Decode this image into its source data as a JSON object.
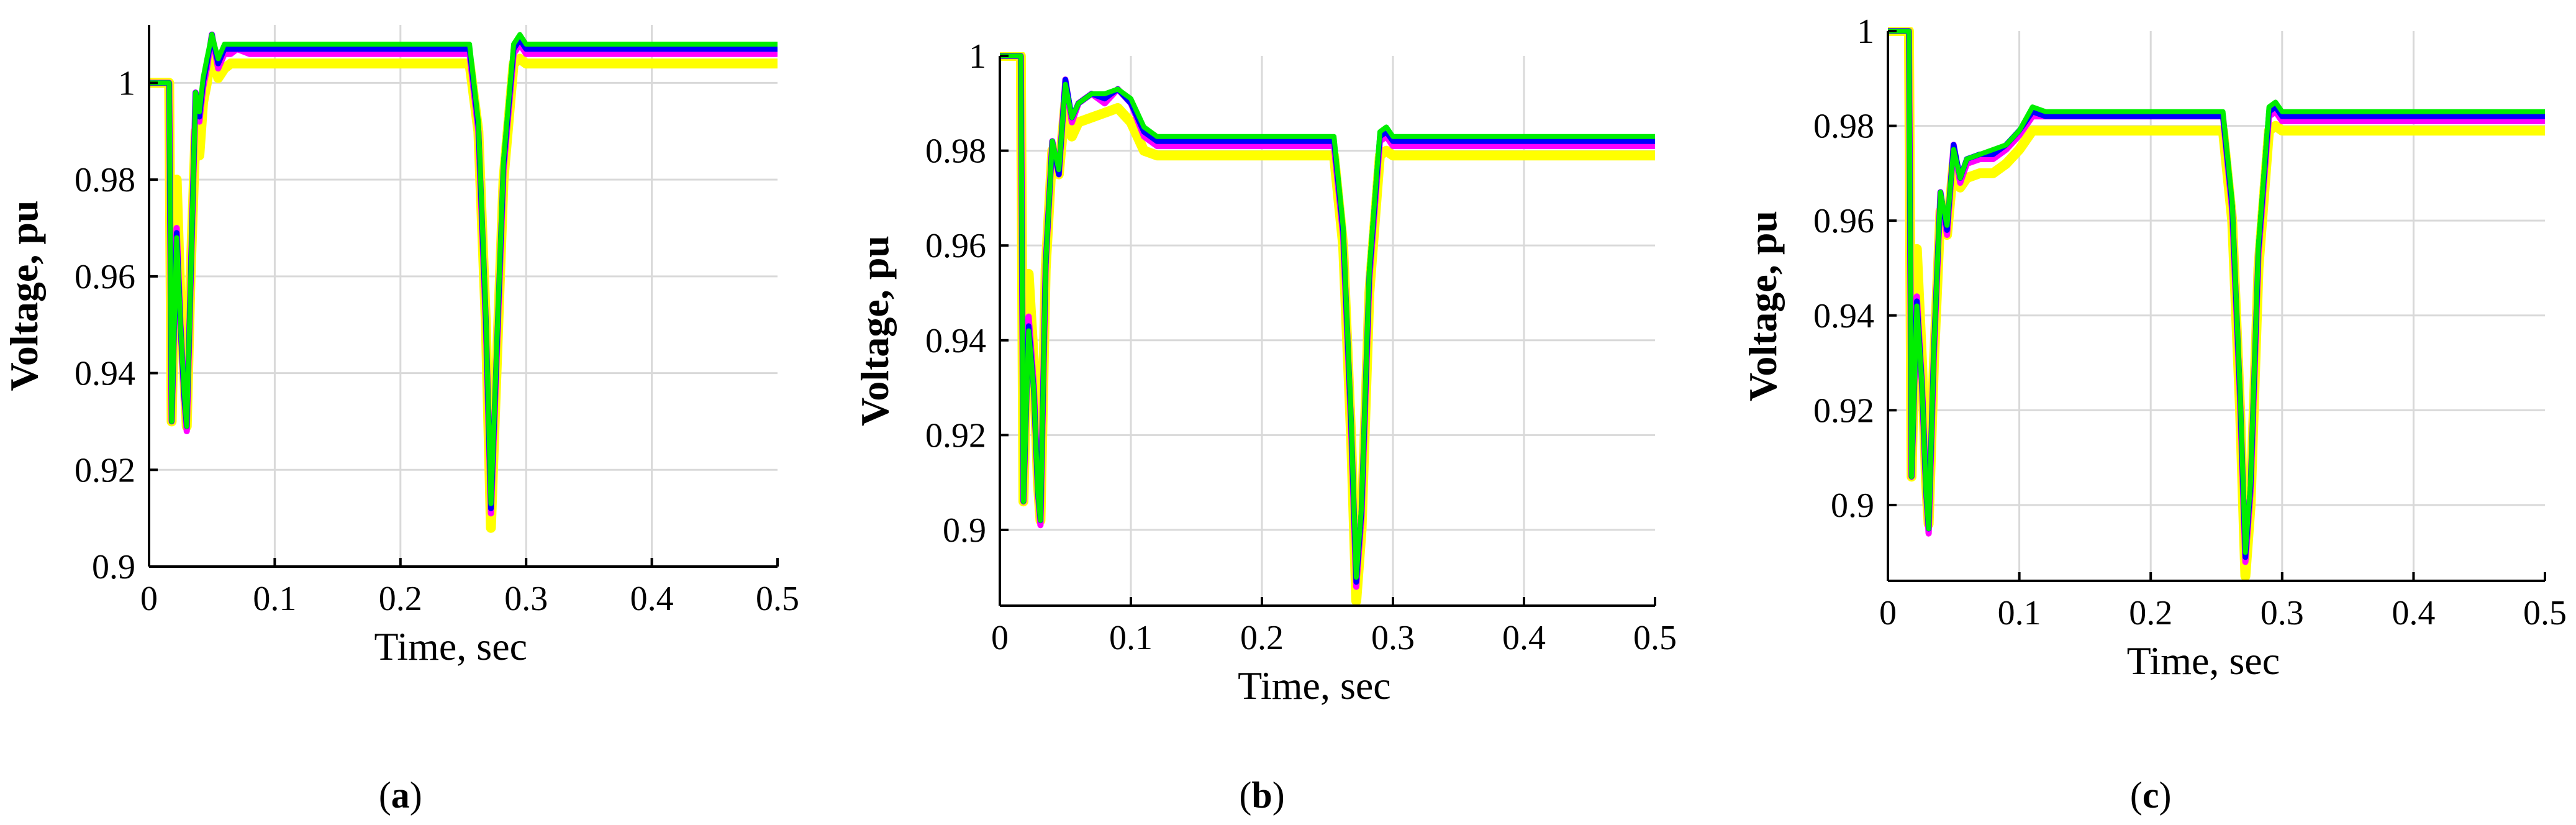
{
  "colors": {
    "yellow": "#ffff00",
    "magenta": "#ff00ff",
    "blue": "#0000ff",
    "green": "#00ee00"
  },
  "chart_data": [
    {
      "type": "line",
      "panel_label": "a",
      "xlabel": "Time, sec",
      "ylabel": "Voltage, pu",
      "xlim": [
        0,
        0.5
      ],
      "ylim": [
        0.9,
        1.012
      ],
      "xticks": [
        "0",
        "0.1",
        "0.2",
        "0.3",
        "0.4",
        "0.5"
      ],
      "yticks": [
        "0.9",
        "0.92",
        "0.94",
        "0.96",
        "0.98",
        "1"
      ],
      "grid": true,
      "series": [
        {
          "color": "yellow",
          "x": [
            0,
            0.016,
            0.018,
            0.022,
            0.025,
            0.028,
            0.03,
            0.033,
            0.037,
            0.04,
            0.043,
            0.046,
            0.05,
            0.055,
            0.06,
            0.065,
            0.07,
            0.08,
            0.255,
            0.262,
            0.268,
            0.272,
            0.275,
            0.282,
            0.29,
            0.295,
            0.3,
            0.5
          ],
          "y": [
            1.0,
            1.0,
            0.93,
            0.98,
            0.955,
            0.94,
            0.929,
            0.96,
            0.99,
            0.985,
            0.996,
            1.0,
            1.007,
            1.001,
            1.003,
            1.004,
            1.004,
            1.004,
            1.004,
            0.99,
            0.95,
            0.908,
            0.93,
            0.98,
            1.004,
            1.005,
            1.004,
            1.004
          ]
        },
        {
          "color": "magenta",
          "x": [
            0,
            0.016,
            0.018,
            0.022,
            0.025,
            0.028,
            0.03,
            0.033,
            0.037,
            0.04,
            0.043,
            0.046,
            0.05,
            0.055,
            0.06,
            0.065,
            0.07,
            0.08,
            0.255,
            0.262,
            0.268,
            0.272,
            0.275,
            0.282,
            0.29,
            0.295,
            0.3,
            0.5
          ],
          "y": [
            1.0,
            1.0,
            0.93,
            0.97,
            0.95,
            0.935,
            0.928,
            0.958,
            0.998,
            0.992,
            0.999,
            1.003,
            1.01,
            1.003,
            1.006,
            1.006,
            1.007,
            1.006,
            1.006,
            0.99,
            0.95,
            0.911,
            0.932,
            0.982,
            1.006,
            1.008,
            1.006,
            1.006
          ]
        },
        {
          "color": "blue",
          "x": [
            0,
            0.016,
            0.018,
            0.022,
            0.025,
            0.028,
            0.03,
            0.033,
            0.037,
            0.04,
            0.043,
            0.046,
            0.05,
            0.055,
            0.06,
            0.065,
            0.07,
            0.08,
            0.255,
            0.262,
            0.268,
            0.272,
            0.275,
            0.282,
            0.29,
            0.295,
            0.3,
            0.5
          ],
          "y": [
            1.0,
            1.0,
            0.93,
            0.969,
            0.95,
            0.935,
            0.929,
            0.958,
            0.998,
            0.993,
            1.0,
            1.004,
            1.01,
            1.004,
            1.007,
            1.007,
            1.007,
            1.007,
            1.007,
            0.991,
            0.951,
            0.912,
            0.933,
            0.983,
            1.007,
            1.009,
            1.007,
            1.007
          ]
        },
        {
          "color": "green",
          "x": [
            0,
            0.016,
            0.018,
            0.022,
            0.025,
            0.028,
            0.03,
            0.033,
            0.037,
            0.04,
            0.043,
            0.046,
            0.05,
            0.055,
            0.06,
            0.065,
            0.07,
            0.08,
            0.255,
            0.262,
            0.268,
            0.272,
            0.275,
            0.282,
            0.29,
            0.295,
            0.3,
            0.5
          ],
          "y": [
            1.0,
            1.0,
            0.93,
            0.968,
            0.95,
            0.936,
            0.929,
            0.958,
            0.998,
            0.994,
            1.001,
            1.005,
            1.01,
            1.005,
            1.008,
            1.008,
            1.008,
            1.008,
            1.008,
            0.992,
            0.952,
            0.913,
            0.934,
            0.984,
            1.008,
            1.01,
            1.008,
            1.008
          ]
        }
      ]
    },
    {
      "type": "line",
      "panel_label": "b",
      "xlabel": "Time, sec",
      "ylabel": "Voltage, pu",
      "xlim": [
        0,
        0.5
      ],
      "ylim": [
        0.884,
        1.0
      ],
      "xticks": [
        "0",
        "0.1",
        "0.2",
        "0.3",
        "0.4",
        "0.5"
      ],
      "yticks": [
        "0.9",
        "0.92",
        "0.94",
        "0.96",
        "0.98",
        "1"
      ],
      "grid": true,
      "series": [
        {
          "color": "yellow",
          "x": [
            0,
            0.016,
            0.018,
            0.022,
            0.026,
            0.029,
            0.031,
            0.035,
            0.04,
            0.045,
            0.05,
            0.055,
            0.06,
            0.07,
            0.08,
            0.09,
            0.1,
            0.11,
            0.12,
            0.255,
            0.262,
            0.268,
            0.272,
            0.276,
            0.282,
            0.29,
            0.295,
            0.3,
            0.5
          ],
          "y": [
            1.0,
            1.0,
            0.906,
            0.954,
            0.935,
            0.91,
            0.902,
            0.955,
            0.98,
            0.975,
            0.99,
            0.983,
            0.986,
            0.987,
            0.988,
            0.989,
            0.986,
            0.98,
            0.979,
            0.979,
            0.96,
            0.92,
            0.885,
            0.9,
            0.95,
            0.979,
            0.98,
            0.979,
            0.979
          ]
        },
        {
          "color": "magenta",
          "x": [
            0,
            0.016,
            0.018,
            0.022,
            0.026,
            0.029,
            0.031,
            0.035,
            0.04,
            0.045,
            0.05,
            0.055,
            0.06,
            0.07,
            0.08,
            0.09,
            0.1,
            0.11,
            0.12,
            0.255,
            0.262,
            0.268,
            0.272,
            0.276,
            0.282,
            0.29,
            0.295,
            0.3,
            0.5
          ],
          "y": [
            1.0,
            1.0,
            0.906,
            0.945,
            0.93,
            0.908,
            0.901,
            0.956,
            0.982,
            0.975,
            0.995,
            0.986,
            0.99,
            0.992,
            0.99,
            0.993,
            0.99,
            0.983,
            0.981,
            0.981,
            0.962,
            0.922,
            0.888,
            0.903,
            0.953,
            0.982,
            0.983,
            0.981,
            0.981
          ]
        },
        {
          "color": "blue",
          "x": [
            0,
            0.016,
            0.018,
            0.022,
            0.026,
            0.029,
            0.031,
            0.035,
            0.04,
            0.045,
            0.05,
            0.055,
            0.06,
            0.07,
            0.08,
            0.09,
            0.1,
            0.11,
            0.12,
            0.255,
            0.262,
            0.268,
            0.272,
            0.276,
            0.282,
            0.29,
            0.295,
            0.3,
            0.5
          ],
          "y": [
            1.0,
            1.0,
            0.906,
            0.943,
            0.929,
            0.908,
            0.902,
            0.956,
            0.982,
            0.975,
            0.995,
            0.987,
            0.99,
            0.992,
            0.991,
            0.993,
            0.99,
            0.984,
            0.982,
            0.982,
            0.963,
            0.923,
            0.889,
            0.904,
            0.954,
            0.983,
            0.984,
            0.982,
            0.982
          ]
        },
        {
          "color": "green",
          "x": [
            0,
            0.016,
            0.018,
            0.022,
            0.026,
            0.029,
            0.031,
            0.035,
            0.04,
            0.045,
            0.05,
            0.055,
            0.06,
            0.07,
            0.08,
            0.09,
            0.1,
            0.11,
            0.12,
            0.255,
            0.262,
            0.268,
            0.272,
            0.276,
            0.282,
            0.29,
            0.295,
            0.3,
            0.5
          ],
          "y": [
            1.0,
            1.0,
            0.906,
            0.942,
            0.929,
            0.908,
            0.902,
            0.956,
            0.982,
            0.976,
            0.994,
            0.987,
            0.99,
            0.992,
            0.992,
            0.993,
            0.991,
            0.985,
            0.983,
            0.983,
            0.964,
            0.924,
            0.89,
            0.905,
            0.955,
            0.984,
            0.985,
            0.983,
            0.983
          ]
        }
      ]
    },
    {
      "type": "line",
      "panel_label": "c",
      "xlabel": "Time, sec",
      "ylabel": "Voltage, pu",
      "xlim": [
        0,
        0.5
      ],
      "ylim": [
        0.884,
        1.0
      ],
      "xticks": [
        "0",
        "0.1",
        "0.2",
        "0.3",
        "0.4",
        "0.5"
      ],
      "yticks": [
        "0.9",
        "0.92",
        "0.94",
        "0.96",
        "0.98",
        "1"
      ],
      "grid": true,
      "series": [
        {
          "color": "yellow",
          "x": [
            0,
            0.016,
            0.018,
            0.022,
            0.026,
            0.029,
            0.031,
            0.035,
            0.04,
            0.045,
            0.05,
            0.055,
            0.06,
            0.07,
            0.08,
            0.09,
            0.1,
            0.11,
            0.12,
            0.255,
            0.262,
            0.268,
            0.272,
            0.276,
            0.282,
            0.29,
            0.295,
            0.3,
            0.5
          ],
          "y": [
            1.0,
            1.0,
            0.906,
            0.954,
            0.93,
            0.905,
            0.896,
            0.93,
            0.962,
            0.957,
            0.972,
            0.967,
            0.969,
            0.97,
            0.97,
            0.972,
            0.975,
            0.979,
            0.979,
            0.979,
            0.96,
            0.92,
            0.885,
            0.9,
            0.95,
            0.979,
            0.98,
            0.979,
            0.979
          ]
        },
        {
          "color": "magenta",
          "x": [
            0,
            0.016,
            0.018,
            0.022,
            0.026,
            0.029,
            0.031,
            0.035,
            0.04,
            0.045,
            0.05,
            0.055,
            0.06,
            0.07,
            0.08,
            0.09,
            0.1,
            0.11,
            0.12,
            0.255,
            0.262,
            0.268,
            0.272,
            0.276,
            0.282,
            0.29,
            0.295,
            0.3,
            0.5
          ],
          "y": [
            1.0,
            1.0,
            0.906,
            0.944,
            0.925,
            0.903,
            0.894,
            0.932,
            0.966,
            0.957,
            0.976,
            0.968,
            0.972,
            0.973,
            0.973,
            0.975,
            0.978,
            0.982,
            0.982,
            0.982,
            0.962,
            0.922,
            0.888,
            0.903,
            0.953,
            0.982,
            0.983,
            0.981,
            0.981
          ]
        },
        {
          "color": "blue",
          "x": [
            0,
            0.016,
            0.018,
            0.022,
            0.026,
            0.029,
            0.031,
            0.035,
            0.04,
            0.045,
            0.05,
            0.055,
            0.06,
            0.07,
            0.08,
            0.09,
            0.1,
            0.11,
            0.12,
            0.255,
            0.262,
            0.268,
            0.272,
            0.276,
            0.282,
            0.29,
            0.295,
            0.3,
            0.5
          ],
          "y": [
            1.0,
            1.0,
            0.906,
            0.943,
            0.925,
            0.903,
            0.895,
            0.933,
            0.966,
            0.958,
            0.976,
            0.969,
            0.973,
            0.974,
            0.974,
            0.976,
            0.979,
            0.983,
            0.982,
            0.982,
            0.963,
            0.923,
            0.889,
            0.904,
            0.954,
            0.983,
            0.984,
            0.982,
            0.982
          ]
        },
        {
          "color": "green",
          "x": [
            0,
            0.016,
            0.018,
            0.022,
            0.026,
            0.029,
            0.031,
            0.035,
            0.04,
            0.045,
            0.05,
            0.055,
            0.06,
            0.07,
            0.08,
            0.09,
            0.1,
            0.11,
            0.12,
            0.255,
            0.262,
            0.268,
            0.272,
            0.276,
            0.282,
            0.29,
            0.295,
            0.3,
            0.5
          ],
          "y": [
            1.0,
            1.0,
            0.906,
            0.942,
            0.925,
            0.903,
            0.895,
            0.933,
            0.966,
            0.959,
            0.975,
            0.969,
            0.973,
            0.974,
            0.975,
            0.976,
            0.979,
            0.984,
            0.983,
            0.983,
            0.964,
            0.924,
            0.89,
            0.905,
            0.955,
            0.984,
            0.985,
            0.983,
            0.983
          ]
        }
      ]
    }
  ]
}
